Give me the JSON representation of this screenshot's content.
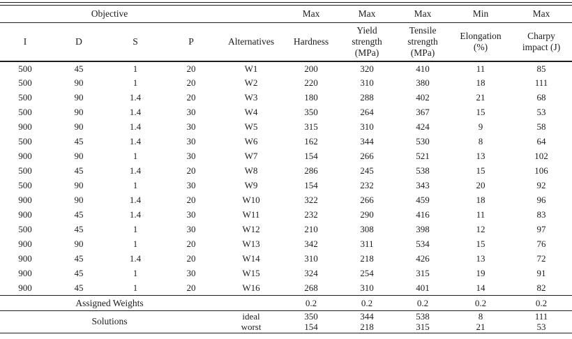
{
  "table": {
    "header": {
      "objective_label": "Objective",
      "optimization": [
        "Max",
        "Max",
        "Max",
        "Min",
        "Max"
      ],
      "factor_columns": [
        "I",
        "D",
        "S",
        "P"
      ],
      "alternatives_label": "Alternatives",
      "metric_columns": [
        "Hardness",
        "Yield\nstrength\n(MPa)",
        "Tensile\nstrength\n(MPa)",
        "Elongation\n(%)",
        "Charpy\nimpact (J)"
      ]
    },
    "rows": [
      [
        "500",
        "45",
        "1",
        "20",
        "W1",
        "200",
        "320",
        "410",
        "11",
        "85"
      ],
      [
        "500",
        "90",
        "1",
        "20",
        "W2",
        "220",
        "310",
        "380",
        "18",
        "111"
      ],
      [
        "500",
        "90",
        "1.4",
        "20",
        "W3",
        "180",
        "288",
        "402",
        "21",
        "68"
      ],
      [
        "500",
        "90",
        "1.4",
        "30",
        "W4",
        "350",
        "264",
        "367",
        "15",
        "53"
      ],
      [
        "900",
        "90",
        "1.4",
        "30",
        "W5",
        "315",
        "310",
        "424",
        "9",
        "58"
      ],
      [
        "500",
        "45",
        "1.4",
        "30",
        "W6",
        "162",
        "344",
        "530",
        "8",
        "64"
      ],
      [
        "900",
        "90",
        "1",
        "30",
        "W7",
        "154",
        "266",
        "521",
        "13",
        "102"
      ],
      [
        "500",
        "45",
        "1.4",
        "20",
        "W8",
        "286",
        "245",
        "538",
        "15",
        "106"
      ],
      [
        "500",
        "90",
        "1",
        "30",
        "W9",
        "154",
        "232",
        "343",
        "20",
        "92"
      ],
      [
        "900",
        "90",
        "1.4",
        "20",
        "W10",
        "322",
        "266",
        "459",
        "18",
        "96"
      ],
      [
        "900",
        "45",
        "1.4",
        "30",
        "W11",
        "232",
        "290",
        "416",
        "11",
        "83"
      ],
      [
        "500",
        "45",
        "1",
        "30",
        "W12",
        "210",
        "308",
        "398",
        "12",
        "97"
      ],
      [
        "900",
        "90",
        "1",
        "20",
        "W13",
        "342",
        "311",
        "534",
        "15",
        "76"
      ],
      [
        "900",
        "45",
        "1.4",
        "20",
        "W14",
        "310",
        "218",
        "426",
        "13",
        "72"
      ],
      [
        "900",
        "45",
        "1",
        "30",
        "W15",
        "324",
        "254",
        "315",
        "19",
        "91"
      ],
      [
        "900",
        "45",
        "1",
        "20",
        "W16",
        "268",
        "310",
        "401",
        "14",
        "82"
      ]
    ],
    "footer": {
      "assigned_weights_label": "Assigned Weights",
      "weights": [
        "0.2",
        "0.2",
        "0.2",
        "0.2",
        "0.2"
      ],
      "solutions_label": "Solutions",
      "ideal": {
        "label": "ideal",
        "values": [
          "350",
          "344",
          "538",
          "8",
          "111"
        ]
      },
      "worst": {
        "label": "worst",
        "values": [
          "154",
          "218",
          "315",
          "21",
          "53"
        ]
      }
    }
  }
}
